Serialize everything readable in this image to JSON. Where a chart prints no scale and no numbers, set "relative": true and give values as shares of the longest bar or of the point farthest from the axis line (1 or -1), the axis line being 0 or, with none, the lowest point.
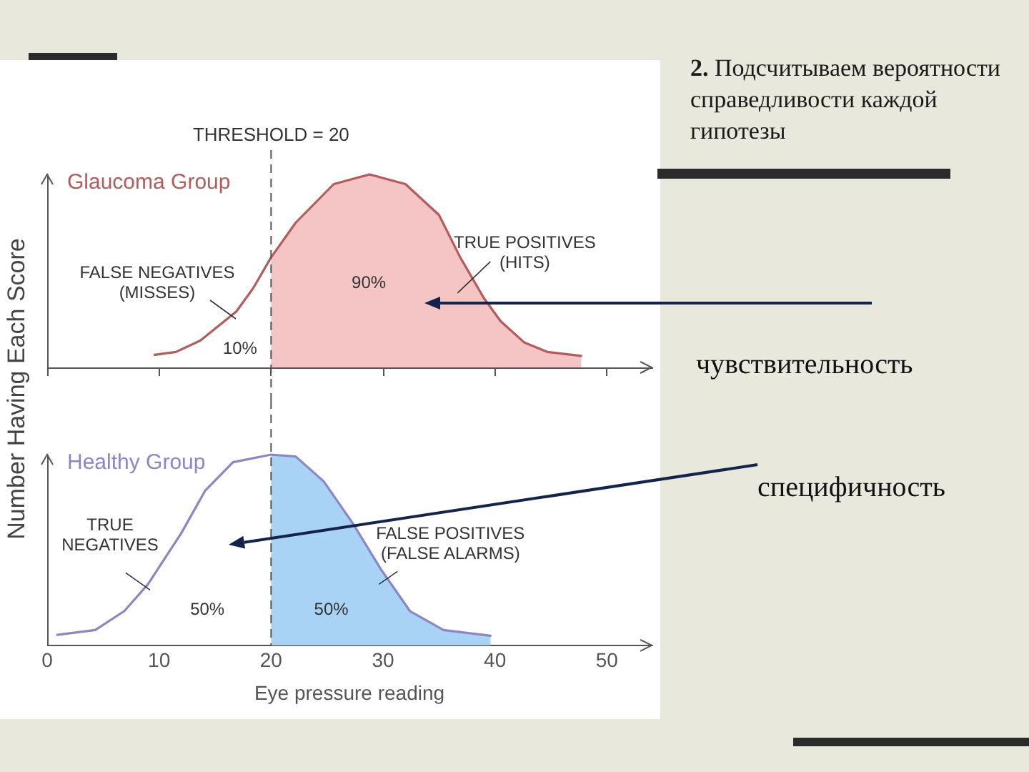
{
  "chart_data": [
    {
      "type": "area",
      "title": "Glaucoma Group",
      "ylabel": "Number Having Each Score",
      "relative": true,
      "xlim": [
        0,
        54
      ],
      "xticks": [
        0,
        10,
        20,
        30,
        40,
        50
      ],
      "tick_labels": false,
      "ref_lines": [
        {
          "axis": "x",
          "value": 20,
          "label": "THRESHOLD = 20",
          "line_style": "dashed",
          "color": "#555555"
        }
      ],
      "series": [
        {
          "color": "#f5c4c4",
          "x": [
            20,
            22.2,
            25.6,
            28.8,
            32,
            35,
            36.9,
            39,
            40.5,
            42.6,
            44.7,
            47.7
          ],
          "values": [
            0.57,
            0.75,
            0.95,
            1,
            0.95,
            0.79,
            0.57,
            0.36,
            0.24,
            0.13,
            0.08,
            0.06
          ]
        },
        {
          "type": "line",
          "color": "#b35c5c",
          "x": [
            9.6,
            11.5,
            13.7,
            16.9,
            18.4,
            20,
            22.2,
            25.6,
            28.8,
            32,
            35,
            36.9,
            39,
            40.5,
            42.6,
            44.7,
            47.7
          ],
          "values": [
            0.065,
            0.08,
            0.14,
            0.29,
            0.41,
            0.57,
            0.75,
            0.95,
            1,
            0.95,
            0.79,
            0.57,
            0.36,
            0.24,
            0.13,
            0.08,
            0.06
          ]
        }
      ],
      "annotations": [
        "2. Подсчитываем вероятности справедливости каждой гипотезы",
        "чувствительность",
        "FALSE NEGATIVES\n(MISSES)",
        "TRUE POSITIVES\n(HITS)",
        "90%",
        "10%"
      ]
    },
    {
      "type": "area",
      "title": "Healthy Group",
      "xlabel": "Eye pressure reading",
      "relative": true,
      "xlim": [
        0,
        54
      ],
      "xticks": [
        0,
        10,
        20,
        30,
        40,
        50
      ],
      "tick_labels": "x",
      "ref_lines": [
        {
          "axis": "x",
          "value": 20,
          "line_style": "dashed",
          "color": "#555555"
        }
      ],
      "series": [
        {
          "color": "#a9d3f5",
          "x": [
            20,
            22.2,
            24.7,
            27.3,
            29.8,
            32.4,
            35.4,
            39.6
          ],
          "values": [
            1,
            0.99,
            0.86,
            0.64,
            0.4,
            0.18,
            0.08,
            0.05
          ]
        },
        {
          "type": "line",
          "color": "#8c86c4",
          "x": [
            0.9,
            4.3,
            6.9,
            9,
            12,
            14.1,
            16.6,
            20,
            22.2,
            24.7,
            27.3,
            29.8,
            32.4,
            35.4,
            39.6
          ],
          "values": [
            0.055,
            0.08,
            0.18,
            0.32,
            0.59,
            0.81,
            0.96,
            1,
            0.99,
            0.86,
            0.64,
            0.4,
            0.18,
            0.08,
            0.05
          ]
        }
      ],
      "annotations": [
        "специфичность",
        "TRUE\nNEGATIVES",
        "FALSE POSITIVES\n(FALSE ALARMS)",
        "50%",
        "50%"
      ]
    }
  ]
}
